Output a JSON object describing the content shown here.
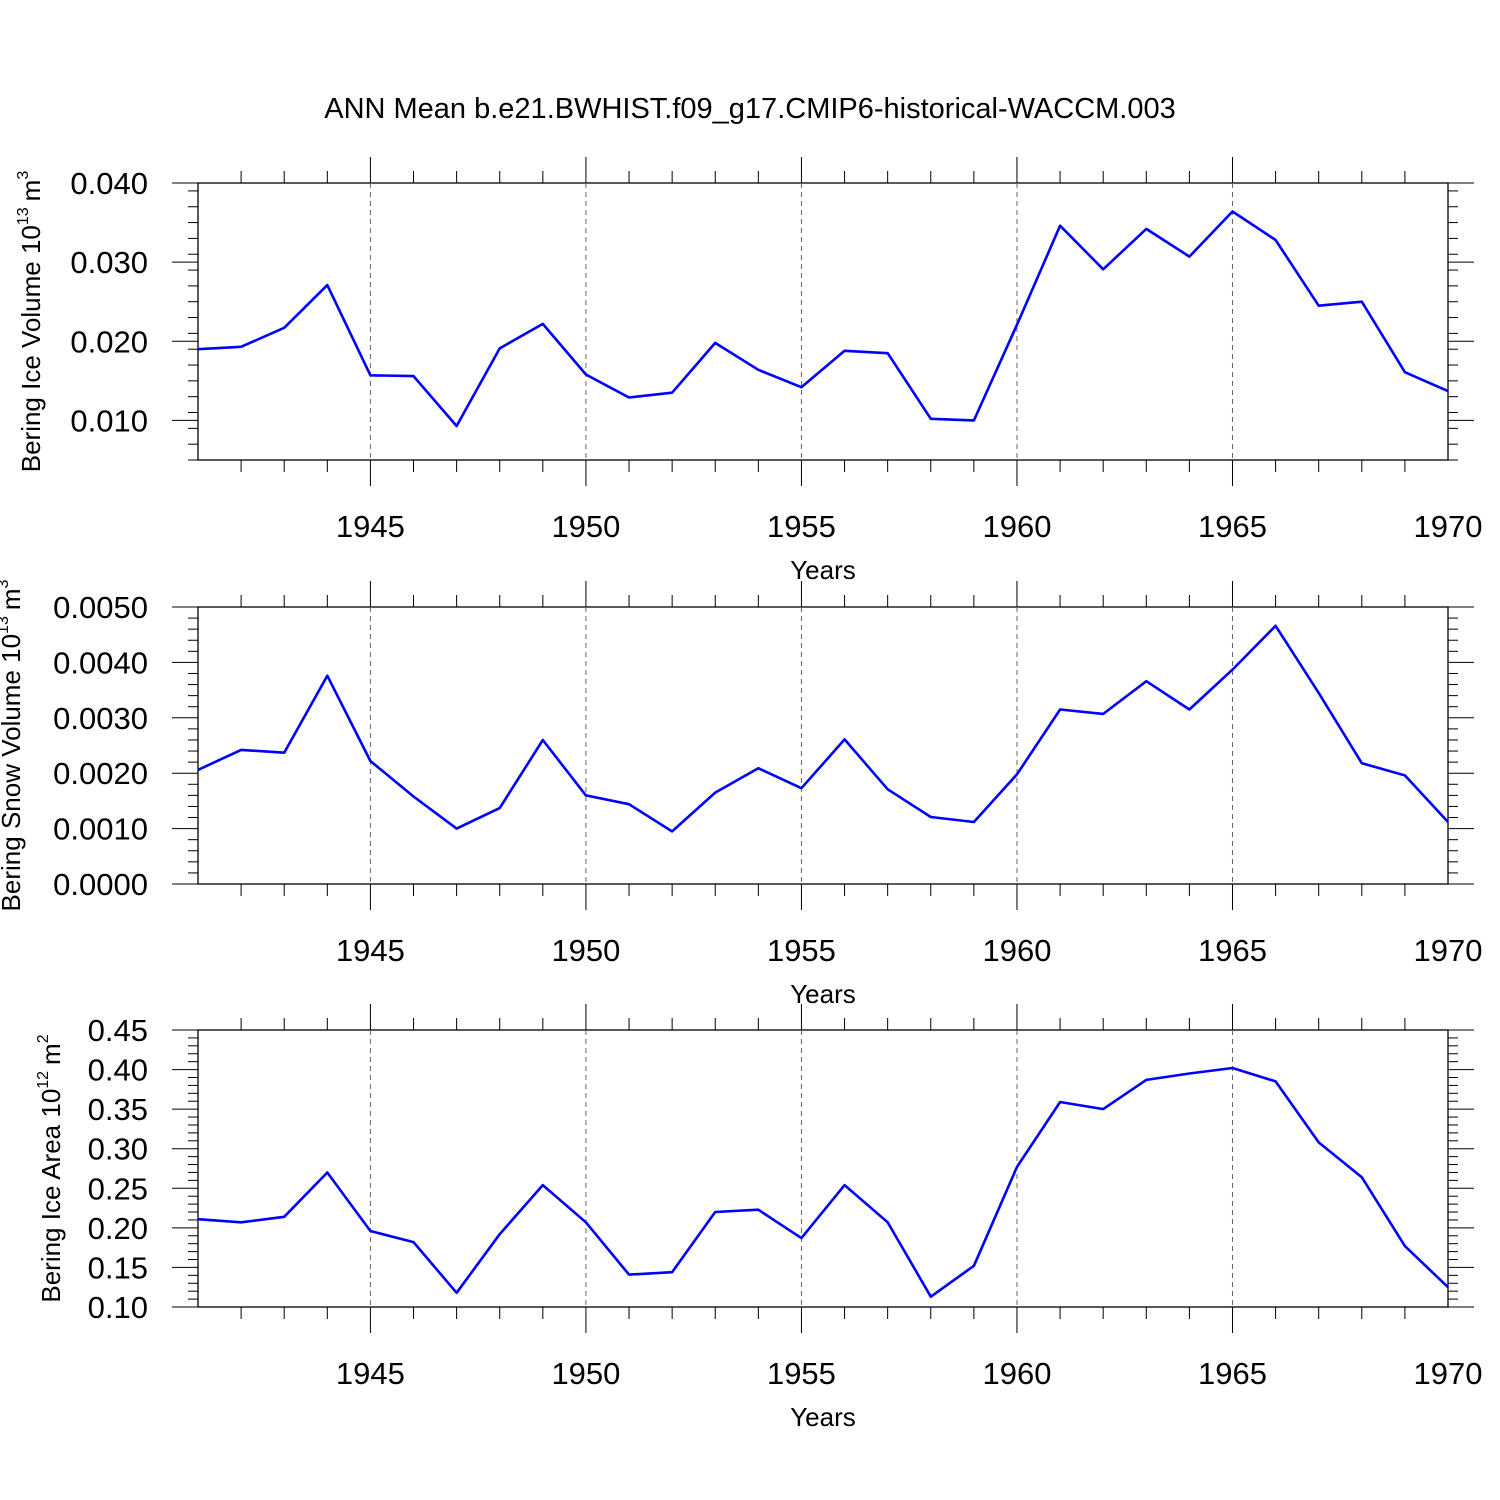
{
  "title": "ANN Mean b.e21.BWHIST.f09_g17.CMIP6-historical-WACCM.003",
  "series_color": "#0000ff",
  "chart_data": [
    {
      "type": "line",
      "ylabel": {
        "text": "Bering Ice Volume 10",
        "sup": "13",
        "unit": "m",
        "unit_sup": "3"
      },
      "xlabel": "Years",
      "xlim": [
        1941,
        1970
      ],
      "ylim": [
        0.005,
        0.04
      ],
      "yticks": [
        "0.010",
        "0.020",
        "0.030",
        "0.040"
      ],
      "xticks": [
        "1945",
        "1950",
        "1955",
        "1960",
        "1965",
        "1970"
      ],
      "x": [
        1941,
        1942,
        1943,
        1944,
        1945,
        1946,
        1947,
        1948,
        1949,
        1950,
        1951,
        1952,
        1953,
        1954,
        1955,
        1956,
        1957,
        1958,
        1959,
        1960,
        1961,
        1962,
        1963,
        1964,
        1965,
        1966,
        1967,
        1968,
        1969,
        1970
      ],
      "values": [
        0.019,
        0.0193,
        0.0217,
        0.0271,
        0.0157,
        0.0156,
        0.0093,
        0.0191,
        0.0222,
        0.0158,
        0.0129,
        0.0135,
        0.0198,
        0.0164,
        0.0142,
        0.0188,
        0.0185,
        0.0102,
        0.01,
        0.0221,
        0.0346,
        0.0291,
        0.0342,
        0.0307,
        0.0364,
        0.0328,
        0.0245,
        0.025,
        0.0161,
        0.0137
      ]
    },
    {
      "type": "line",
      "ylabel": {
        "text": "Bering Snow Volume 10",
        "sup": "13",
        "unit": "m",
        "unit_sup": "3"
      },
      "xlabel": "Years",
      "xlim": [
        1941,
        1970
      ],
      "ylim": [
        0.0,
        0.005
      ],
      "yticks": [
        "0.0000",
        "0.0010",
        "0.0020",
        "0.0030",
        "0.0040",
        "0.0050"
      ],
      "xticks": [
        "1945",
        "1950",
        "1955",
        "1960",
        "1965",
        "1970"
      ],
      "x": [
        1941,
        1942,
        1943,
        1944,
        1945,
        1946,
        1947,
        1948,
        1949,
        1950,
        1951,
        1952,
        1953,
        1954,
        1955,
        1956,
        1957,
        1958,
        1959,
        1960,
        1961,
        1962,
        1963,
        1964,
        1965,
        1966,
        1967,
        1968,
        1969,
        1970
      ],
      "values": [
        0.00206,
        0.00242,
        0.00237,
        0.00376,
        0.00222,
        0.00158,
        0.001,
        0.00137,
        0.0026,
        0.0016,
        0.00144,
        0.00095,
        0.00165,
        0.00209,
        0.00173,
        0.00261,
        0.00171,
        0.00121,
        0.00112,
        0.00198,
        0.00315,
        0.00307,
        0.00366,
        0.00315,
        0.00387,
        0.00466,
        0.00345,
        0.00218,
        0.00196,
        0.00112
      ]
    },
    {
      "type": "line",
      "ylabel": {
        "text": "Bering Ice Area 10",
        "sup": "12",
        "unit": "m",
        "unit_sup": "2"
      },
      "xlabel": "Years",
      "xlim": [
        1941,
        1970
      ],
      "ylim": [
        0.1,
        0.45
      ],
      "yticks": [
        "0.10",
        "0.15",
        "0.20",
        "0.25",
        "0.30",
        "0.35",
        "0.40",
        "0.45"
      ],
      "xticks": [
        "1945",
        "1950",
        "1955",
        "1960",
        "1965",
        "1970"
      ],
      "x": [
        1941,
        1942,
        1943,
        1944,
        1945,
        1946,
        1947,
        1948,
        1949,
        1950,
        1951,
        1952,
        1953,
        1954,
        1955,
        1956,
        1957,
        1958,
        1959,
        1960,
        1961,
        1962,
        1963,
        1964,
        1965,
        1966,
        1967,
        1968,
        1969,
        1970
      ],
      "values": [
        0.211,
        0.207,
        0.214,
        0.27,
        0.196,
        0.182,
        0.118,
        0.192,
        0.254,
        0.207,
        0.141,
        0.144,
        0.22,
        0.223,
        0.187,
        0.254,
        0.207,
        0.113,
        0.152,
        0.277,
        0.359,
        0.35,
        0.387,
        0.395,
        0.402,
        0.385,
        0.308,
        0.264,
        0.177,
        0.125
      ]
    }
  ]
}
